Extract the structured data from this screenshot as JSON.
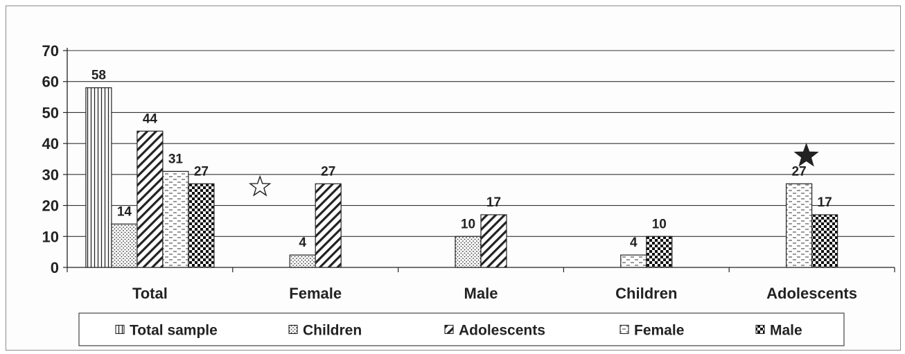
{
  "chart_data": {
    "type": "bar",
    "categories": [
      "Total",
      "Female",
      "Male",
      "Children",
      "Adolescents"
    ],
    "series": [
      {
        "name": "Total sample",
        "pattern": "vertical-lines",
        "values": [
          58,
          null,
          null,
          null,
          null
        ]
      },
      {
        "name": "Children",
        "pattern": "dots",
        "values": [
          14,
          4,
          10,
          null,
          null
        ]
      },
      {
        "name": "Adolescents",
        "pattern": "diagonal-hatch",
        "values": [
          44,
          27,
          17,
          null,
          null
        ]
      },
      {
        "name": "Female",
        "pattern": "dashes",
        "values": [
          31,
          null,
          null,
          4,
          27
        ]
      },
      {
        "name": "Male",
        "pattern": "checker",
        "values": [
          27,
          null,
          null,
          10,
          17
        ]
      }
    ],
    "ylim": [
      0,
      70
    ],
    "yticks": [
      "0",
      "10",
      "20",
      "30",
      "40",
      "50",
      "60",
      "70"
    ],
    "grid": true,
    "legend": "bottom",
    "annotations": [
      {
        "symbol": "star-outline",
        "category": "Female",
        "y": 26
      },
      {
        "symbol": "star-filled",
        "category": "Adolescents",
        "y": 36
      }
    ],
    "colors": {
      "bar_fill": "#ffffff",
      "ink": "#222222",
      "grid": "#333333"
    }
  }
}
